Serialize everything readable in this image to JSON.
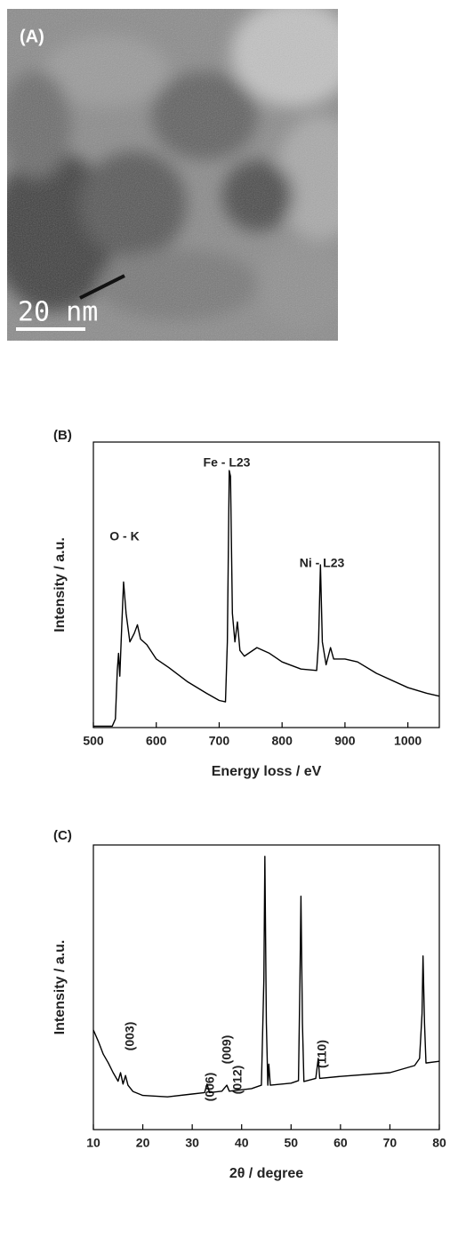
{
  "image": {
    "label": "(A)",
    "scale_bar": "20 nm"
  },
  "chart_data": [
    {
      "type": "line",
      "panel_label": "(B)",
      "xlabel": "Energy loss / eV",
      "ylabel": "Intensity / a.u.",
      "annotations": [
        "O - K",
        "Fe - L23",
        "Ni - L23"
      ],
      "color": "#000000",
      "xlim": [
        500,
        1050
      ],
      "xticks": [
        500,
        600,
        700,
        800,
        900,
        1000
      ],
      "ylim": [
        0,
        100
      ],
      "x": [
        500,
        530,
        535,
        538,
        540,
        542,
        545,
        548,
        552,
        558,
        565,
        570,
        575,
        585,
        600,
        620,
        650,
        680,
        700,
        710,
        713,
        716,
        718,
        721,
        725,
        729,
        733,
        740,
        760,
        780,
        800,
        830,
        855,
        858,
        861,
        864,
        870,
        877,
        882,
        900,
        920,
        950,
        1000,
        1030,
        1050
      ],
      "values": [
        0.5,
        0.5,
        3,
        20,
        26,
        18,
        35,
        51,
        40,
        30,
        33,
        36,
        31,
        29,
        24,
        21,
        16,
        12,
        9.5,
        9,
        30,
        90,
        88,
        40,
        30,
        37,
        27,
        25,
        28,
        26,
        23,
        20.5,
        20,
        30,
        57,
        30,
        22,
        28,
        24,
        24,
        23,
        19,
        14,
        12,
        11
      ]
    },
    {
      "type": "line",
      "panel_label": "(C)",
      "xlabel": "2θ / degree",
      "ylabel": "Intensity / a.u.",
      "annotations": [
        "(003)",
        "(006)",
        "(009)",
        "(012)",
        "(110)"
      ],
      "color": "#000000",
      "xlim": [
        10,
        80
      ],
      "xticks": [
        10,
        20,
        30,
        40,
        50,
        60,
        70,
        80
      ],
      "ylim": [
        0,
        100
      ],
      "x": [
        10,
        11,
        12,
        13,
        14,
        15,
        15.5,
        16,
        16.5,
        17,
        18,
        20,
        25,
        30,
        32.5,
        33,
        33.5,
        36,
        37,
        37.5,
        42,
        44,
        44.5,
        44.7,
        45,
        45.3,
        45.5,
        45.8,
        50,
        51.5,
        51.8,
        52,
        52.3,
        52.6,
        55,
        55.5,
        55.8,
        60,
        70,
        75,
        76,
        76.5,
        76.7,
        77,
        77.3,
        80
      ],
      "values": [
        35,
        31,
        26.5,
        23.5,
        20,
        17,
        20,
        16,
        19,
        15.6,
        13.4,
        12,
        11.5,
        12.5,
        13,
        16,
        13,
        13.5,
        15.6,
        13.5,
        14.4,
        15.6,
        53,
        96,
        37.5,
        15.6,
        23,
        15.6,
        16.3,
        17.2,
        53,
        82,
        37.5,
        16.9,
        18,
        25,
        18,
        18.7,
        20,
        22.5,
        25,
        40.6,
        61,
        37.5,
        23.4,
        24
      ]
    }
  ]
}
